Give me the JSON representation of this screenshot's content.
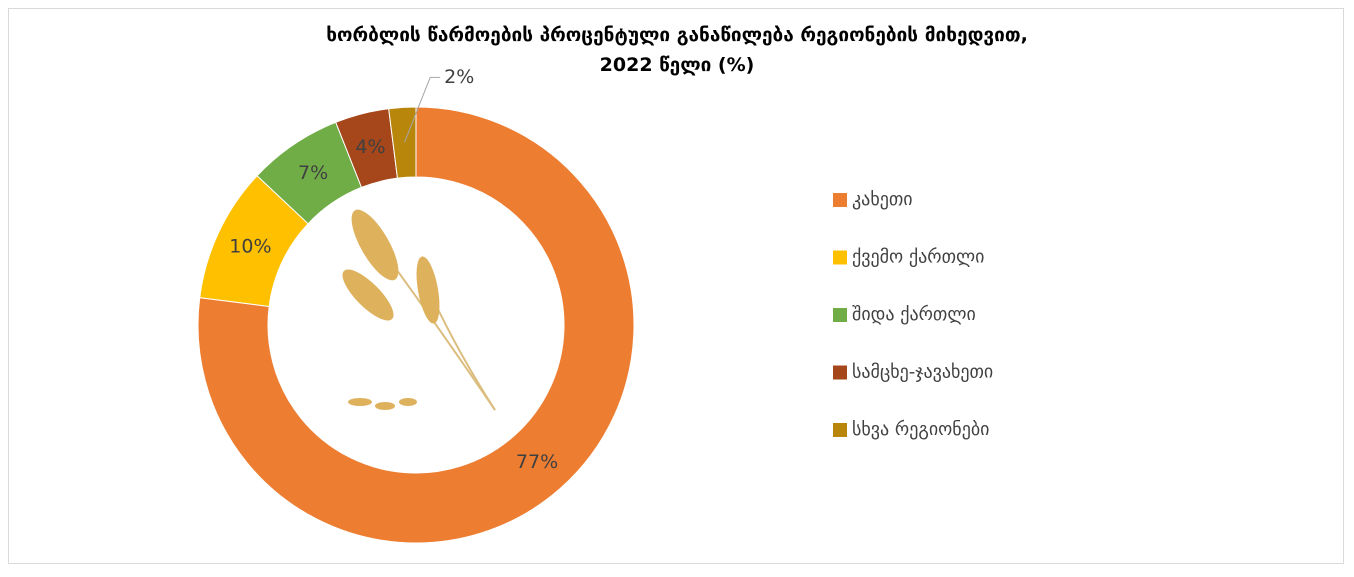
{
  "chart_data": {
    "type": "donut",
    "title": "ხორბლის წარმოების პროცენტული განაწილება რეგიონების მიხედვით,\n2022 წელი (%)",
    "categories": [
      "კახეთი",
      "ქვემო ქართლი",
      "შიდა ქართლი",
      "სამცხე-ჯავახეთი",
      "სხვა რეგიონები"
    ],
    "values": [
      77,
      10,
      7,
      4,
      2
    ],
    "value_labels": [
      "77%",
      "10%",
      "7%",
      "4%",
      "2%"
    ],
    "colors": [
      "#ed7d31",
      "#ffc000",
      "#70ad47",
      "#a5461b",
      "#b8860b"
    ],
    "legend": "right"
  }
}
